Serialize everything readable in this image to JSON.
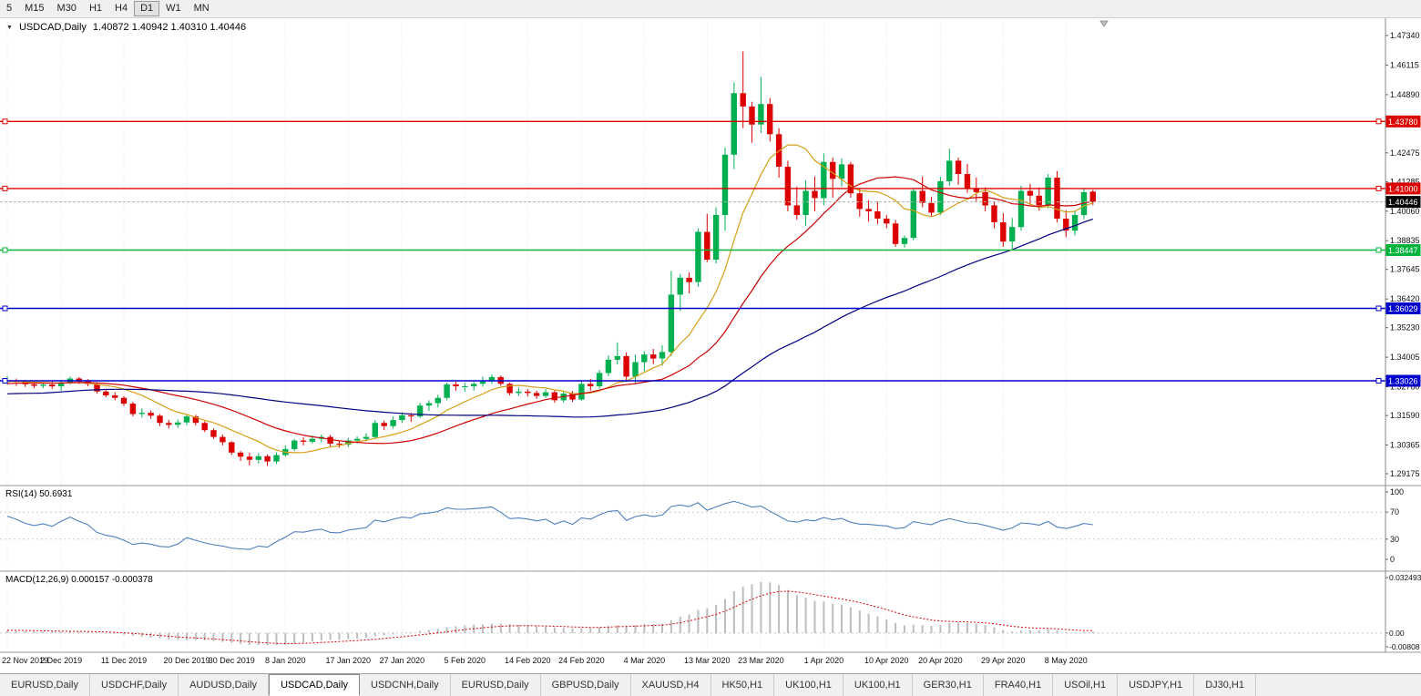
{
  "toolbar": {
    "timeframes": [
      "5",
      "M15",
      "M30",
      "H1",
      "H4",
      "D1",
      "W1",
      "MN"
    ],
    "active_timeframe": "D1"
  },
  "chart": {
    "symbol_title": "USDCAD,Daily",
    "ohlc_text": "1.40872 1.40942 1.40310 1.40446",
    "current_price": {
      "value": 1.40446,
      "label": "1.40446",
      "badge_color": "#000000"
    },
    "price_axis_ticks": [
      "1.47340",
      "1.46115",
      "1.44890",
      "1.43665",
      "1.42475",
      "1.41285",
      "1.40060",
      "1.38835",
      "1.37645",
      "1.36420",
      "1.35230",
      "1.34005",
      "1.32780",
      "1.31590",
      "1.30365",
      "1.29175"
    ],
    "hlines": [
      {
        "price": 1.4378,
        "label": "1.43780",
        "color": "#dd0000"
      },
      {
        "price": 1.41,
        "label": "1.41000",
        "color": "#dd0000"
      },
      {
        "price": 1.38447,
        "label": "1.38447",
        "color": "#00b43c"
      },
      {
        "price": 1.36029,
        "label": "1.36029",
        "color": "#0000cc"
      },
      {
        "price": 1.33026,
        "label": "1.33026",
        "color": "#0000cc"
      }
    ],
    "colors": {
      "up": "#00b050",
      "down": "#dd0000",
      "grid": "#e4e4e4",
      "axis_line": "#8a8a8a",
      "separator": "#9a9a9a",
      "current_price_line": "#b0b0b0"
    }
  },
  "chart_data": {
    "type": "candlestick",
    "symbol": "USDCAD",
    "timeframe": "Daily",
    "title": "USDCAD,Daily 1.40872 1.40942 1.40310 1.40446",
    "y_range": [
      1.28684,
      1.4802
    ],
    "x_labels": [
      [
        0,
        "22 Nov 2019"
      ],
      [
        6,
        "2 Dec 2019"
      ],
      [
        13,
        "11 Dec 2019"
      ],
      [
        20,
        "20 Dec 2019"
      ],
      [
        25,
        "30 Dec 2019"
      ],
      [
        31,
        "8 Jan 2020"
      ],
      [
        38,
        "17 Jan 2020"
      ],
      [
        44,
        "27 Jan 2020"
      ],
      [
        51,
        "5 Feb 2020"
      ],
      [
        58,
        "14 Feb 2020"
      ],
      [
        64,
        "24 Feb 2020"
      ],
      [
        71,
        "4 Mar 2020"
      ],
      [
        78,
        "13 Mar 2020"
      ],
      [
        84,
        "23 Mar 2020"
      ],
      [
        91,
        "1 Apr 2020"
      ],
      [
        98,
        "10 Apr 2020"
      ],
      [
        104,
        "20 Apr 2020"
      ],
      [
        111,
        "29 Apr 2020"
      ],
      [
        118,
        "8 May 2020"
      ]
    ],
    "moving_averages": [
      {
        "name": "fast-ma",
        "period": 9,
        "color": "#d4a017"
      },
      {
        "name": "medium-ma",
        "period": 21,
        "color": "#cc0000"
      },
      {
        "name": "slow-ma",
        "period": 55,
        "color": "#000080"
      }
    ],
    "warmup_closes": [
      1.3152,
      1.316,
      1.3148,
      1.3165,
      1.3172,
      1.318,
      1.3175,
      1.3188,
      1.3195,
      1.319,
      1.3202,
      1.321,
      1.3205,
      1.3218,
      1.3225,
      1.322,
      1.3232,
      1.3228,
      1.324,
      1.3248,
      1.3242,
      1.3255,
      1.325,
      1.3262,
      1.3258,
      1.327,
      1.3265,
      1.3272,
      1.3268,
      1.3278,
      1.327,
      1.328,
      1.3275,
      1.3285,
      1.328,
      1.3288,
      1.3282,
      1.3292,
      1.3285,
      1.3295,
      1.329,
      1.3298,
      1.3292,
      1.33,
      1.3295,
      1.3302,
      1.3296,
      1.3304,
      1.3298,
      1.3302
    ],
    "candles": [
      [
        1.3298,
        1.3322,
        1.3287,
        1.3305
      ],
      [
        1.3305,
        1.3312,
        1.3282,
        1.3298
      ],
      [
        1.3298,
        1.3305,
        1.3277,
        1.3288
      ],
      [
        1.3288,
        1.33,
        1.3272,
        1.3282
      ],
      [
        1.3282,
        1.3295,
        1.3272,
        1.3287
      ],
      [
        1.3287,
        1.33,
        1.327,
        1.328
      ],
      [
        1.328,
        1.3305,
        1.3262,
        1.3296
      ],
      [
        1.3296,
        1.332,
        1.3288,
        1.3312
      ],
      [
        1.3312,
        1.3318,
        1.329,
        1.33
      ],
      [
        1.33,
        1.331,
        1.328,
        1.3289
      ],
      [
        1.3289,
        1.3296,
        1.325,
        1.3258
      ],
      [
        1.3258,
        1.327,
        1.3235,
        1.3242
      ],
      [
        1.3242,
        1.3255,
        1.3222,
        1.3232
      ],
      [
        1.3232,
        1.324,
        1.3198,
        1.3208
      ],
      [
        1.3208,
        1.3215,
        1.3155,
        1.3165
      ],
      [
        1.3165,
        1.3188,
        1.315,
        1.317
      ],
      [
        1.317,
        1.318,
        1.3145,
        1.3158
      ],
      [
        1.3158,
        1.3165,
        1.3115,
        1.3128
      ],
      [
        1.3128,
        1.314,
        1.3105,
        1.312
      ],
      [
        1.312,
        1.3142,
        1.3108,
        1.313
      ],
      [
        1.313,
        1.3165,
        1.3118,
        1.3155
      ],
      [
        1.3155,
        1.3162,
        1.3118,
        1.3128
      ],
      [
        1.3128,
        1.3135,
        1.309,
        1.3098
      ],
      [
        1.3098,
        1.3105,
        1.3062,
        1.307
      ],
      [
        1.307,
        1.308,
        1.3035,
        1.3048
      ],
      [
        1.3048,
        1.3052,
        1.2995,
        1.3005
      ],
      [
        1.3005,
        1.3012,
        1.297,
        1.2988
      ],
      [
        1.2988,
        1.3005,
        1.2952,
        1.2975
      ],
      [
        1.2975,
        1.3002,
        1.296,
        1.299
      ],
      [
        1.299,
        1.2998,
        1.295,
        1.2968
      ],
      [
        1.2968,
        1.3005,
        1.2958,
        1.2995
      ],
      [
        1.2995,
        1.3035,
        1.2988,
        1.302
      ],
      [
        1.302,
        1.3062,
        1.3012,
        1.3055
      ],
      [
        1.3055,
        1.3068,
        1.3035,
        1.305
      ],
      [
        1.305,
        1.3075,
        1.3042,
        1.3062
      ],
      [
        1.3062,
        1.308,
        1.3048,
        1.307
      ],
      [
        1.307,
        1.3078,
        1.303,
        1.3042
      ],
      [
        1.3042,
        1.3055,
        1.3025,
        1.3038
      ],
      [
        1.3038,
        1.3065,
        1.3028,
        1.3055
      ],
      [
        1.3055,
        1.3072,
        1.3042,
        1.3062
      ],
      [
        1.3062,
        1.3085,
        1.3052,
        1.307
      ],
      [
        1.307,
        1.314,
        1.3062,
        1.3128
      ],
      [
        1.3128,
        1.3138,
        1.3098,
        1.3115
      ],
      [
        1.3115,
        1.3155,
        1.3105,
        1.314
      ],
      [
        1.314,
        1.3172,
        1.3128,
        1.316
      ],
      [
        1.316,
        1.317,
        1.3132,
        1.3155
      ],
      [
        1.3155,
        1.3212,
        1.3148,
        1.32
      ],
      [
        1.32,
        1.3222,
        1.3178,
        1.321
      ],
      [
        1.321,
        1.3245,
        1.3192,
        1.3232
      ],
      [
        1.3232,
        1.3295,
        1.3222,
        1.3288
      ],
      [
        1.3288,
        1.3302,
        1.3262,
        1.328
      ],
      [
        1.328,
        1.3295,
        1.3258,
        1.328
      ],
      [
        1.328,
        1.3298,
        1.3262,
        1.329
      ],
      [
        1.329,
        1.332,
        1.3278,
        1.33
      ],
      [
        1.33,
        1.333,
        1.329,
        1.3318
      ],
      [
        1.3318,
        1.3325,
        1.3282,
        1.329
      ],
      [
        1.329,
        1.3295,
        1.3242,
        1.3252
      ],
      [
        1.3252,
        1.3275,
        1.324,
        1.3258
      ],
      [
        1.3258,
        1.3268,
        1.3238,
        1.3252
      ],
      [
        1.3252,
        1.3262,
        1.3228,
        1.324
      ],
      [
        1.324,
        1.3268,
        1.3232,
        1.3255
      ],
      [
        1.3255,
        1.3262,
        1.3212,
        1.3222
      ],
      [
        1.3222,
        1.3258,
        1.3212,
        1.325
      ],
      [
        1.325,
        1.326,
        1.3215,
        1.3225
      ],
      [
        1.3225,
        1.3305,
        1.322,
        1.329
      ],
      [
        1.329,
        1.331,
        1.3262,
        1.328
      ],
      [
        1.328,
        1.3348,
        1.327,
        1.3335
      ],
      [
        1.3335,
        1.3408,
        1.3322,
        1.339
      ],
      [
        1.339,
        1.3462,
        1.337,
        1.3405
      ],
      [
        1.3405,
        1.342,
        1.3305,
        1.332
      ],
      [
        1.332,
        1.3412,
        1.3292,
        1.338
      ],
      [
        1.338,
        1.3425,
        1.3342,
        1.3412
      ],
      [
        1.3412,
        1.3435,
        1.3372,
        1.3395
      ],
      [
        1.3395,
        1.345,
        1.3365,
        1.3422
      ],
      [
        1.3422,
        1.3758,
        1.3405,
        1.366
      ],
      [
        1.366,
        1.3745,
        1.3592,
        1.373
      ],
      [
        1.373,
        1.3752,
        1.3665,
        1.3712
      ],
      [
        1.3712,
        1.3935,
        1.3692,
        1.392
      ],
      [
        1.392,
        1.3995,
        1.3795,
        1.3805
      ],
      [
        1.3805,
        1.4022,
        1.379,
        1.399
      ],
      [
        1.399,
        1.427,
        1.3925,
        1.424
      ],
      [
        1.424,
        1.454,
        1.418,
        1.4495
      ],
      [
        1.4495,
        1.4668,
        1.435,
        1.444
      ],
      [
        1.444,
        1.446,
        1.429,
        1.4365
      ],
      [
        1.4365,
        1.4562,
        1.433,
        1.445
      ],
      [
        1.445,
        1.4475,
        1.4295,
        1.4325
      ],
      [
        1.4325,
        1.435,
        1.4145,
        1.419
      ],
      [
        1.419,
        1.4215,
        1.4005,
        1.403
      ],
      [
        1.403,
        1.4108,
        1.397,
        1.399
      ],
      [
        1.399,
        1.4135,
        1.3945,
        1.409
      ],
      [
        1.409,
        1.415,
        1.4005,
        1.406
      ],
      [
        1.406,
        1.4245,
        1.403,
        1.421
      ],
      [
        1.421,
        1.4228,
        1.4062,
        1.414
      ],
      [
        1.414,
        1.4225,
        1.4108,
        1.42
      ],
      [
        1.42,
        1.421,
        1.4062,
        1.408
      ],
      [
        1.408,
        1.4098,
        1.3982,
        1.4015
      ],
      [
        1.4015,
        1.4052,
        1.3962,
        1.4005
      ],
      [
        1.4005,
        1.4045,
        1.3952,
        1.3975
      ],
      [
        1.3975,
        1.399,
        1.3935,
        1.3955
      ],
      [
        1.3955,
        1.397,
        1.3858,
        1.387
      ],
      [
        1.387,
        1.3905,
        1.3855,
        1.3895
      ],
      [
        1.3895,
        1.41,
        1.3885,
        1.409
      ],
      [
        1.409,
        1.415,
        1.4022,
        1.404
      ],
      [
        1.404,
        1.4065,
        1.3985,
        1.4
      ],
      [
        1.4,
        1.4148,
        1.399,
        1.413
      ],
      [
        1.413,
        1.4265,
        1.411,
        1.4215
      ],
      [
        1.4215,
        1.4228,
        1.4115,
        1.416
      ],
      [
        1.416,
        1.4202,
        1.4082,
        1.41
      ],
      [
        1.41,
        1.4145,
        1.4048,
        1.4085
      ],
      [
        1.4085,
        1.4105,
        1.4005,
        1.403
      ],
      [
        1.403,
        1.4048,
        1.3935,
        1.396
      ],
      [
        1.396,
        1.3998,
        1.3858,
        1.388
      ],
      [
        1.388,
        1.3978,
        1.385,
        1.394
      ],
      [
        1.394,
        1.4112,
        1.3925,
        1.409
      ],
      [
        1.409,
        1.412,
        1.4032,
        1.407
      ],
      [
        1.407,
        1.4105,
        1.4008,
        1.403
      ],
      [
        1.403,
        1.416,
        1.4018,
        1.4145
      ],
      [
        1.4145,
        1.4172,
        1.396,
        1.3975
      ],
      [
        1.3975,
        1.401,
        1.3898,
        1.3925
      ],
      [
        1.3925,
        1.4005,
        1.3905,
        1.399
      ],
      [
        1.399,
        1.4098,
        1.3972,
        1.4085
      ],
      [
        1.40872,
        1.40942,
        1.4031,
        1.40446
      ]
    ]
  },
  "rsi_panel": {
    "label": "RSI(14) 50.6931",
    "period": 14,
    "color": "#4f81bd",
    "levels": [
      70,
      30
    ],
    "axis_ticks": [
      "100",
      "70",
      "30",
      "0"
    ]
  },
  "macd_panel": {
    "label": "MACD(12,26,9) 0.000157 -0.000378",
    "params": [
      12,
      26,
      9
    ],
    "y_range": [
      -0.00808,
      0.032493
    ],
    "axis_ticks": [
      "0.032493",
      "0.00",
      "-0.00808"
    ],
    "histogram_color": "#bdbdbd",
    "signal_color": "#dd0000"
  },
  "tabs": {
    "active_index": 3,
    "items": [
      "EURUSD,Daily",
      "USDCHF,Daily",
      "AUDUSD,Daily",
      "USDCAD,Daily",
      "USDCNH,Daily",
      "EURUSD,Daily",
      "GBPUSD,Daily",
      "XAUUSD,H4",
      "HK50,H1",
      "UK100,H1",
      "UK100,H1",
      "GER30,H1",
      "FRA40,H1",
      "USOil,H1",
      "USDJPY,H1",
      "DJ30,H1"
    ]
  }
}
